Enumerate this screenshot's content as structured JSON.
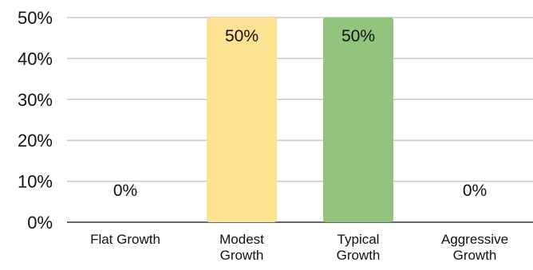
{
  "chart_data": {
    "type": "bar",
    "categories": [
      [
        "Flat Growth"
      ],
      [
        "Modest",
        "Growth"
      ],
      [
        "Typical",
        "Growth"
      ],
      [
        "Aggressive",
        "Growth"
      ]
    ],
    "values": [
      0,
      50,
      50,
      0
    ],
    "data_labels": [
      "0%",
      "50%",
      "50%",
      "0%"
    ],
    "bar_colors": [
      "#fde293",
      "#fde293",
      "#93c47d",
      "#93c47d"
    ],
    "ylim": [
      0,
      50
    ],
    "yticks": [
      0,
      10,
      20,
      30,
      40,
      50
    ],
    "ytick_labels": [
      "0%",
      "10%",
      "20%",
      "30%",
      "40%",
      "50%"
    ],
    "title": "",
    "xlabel": "",
    "ylabel": "",
    "grid": true,
    "legend": "none"
  }
}
